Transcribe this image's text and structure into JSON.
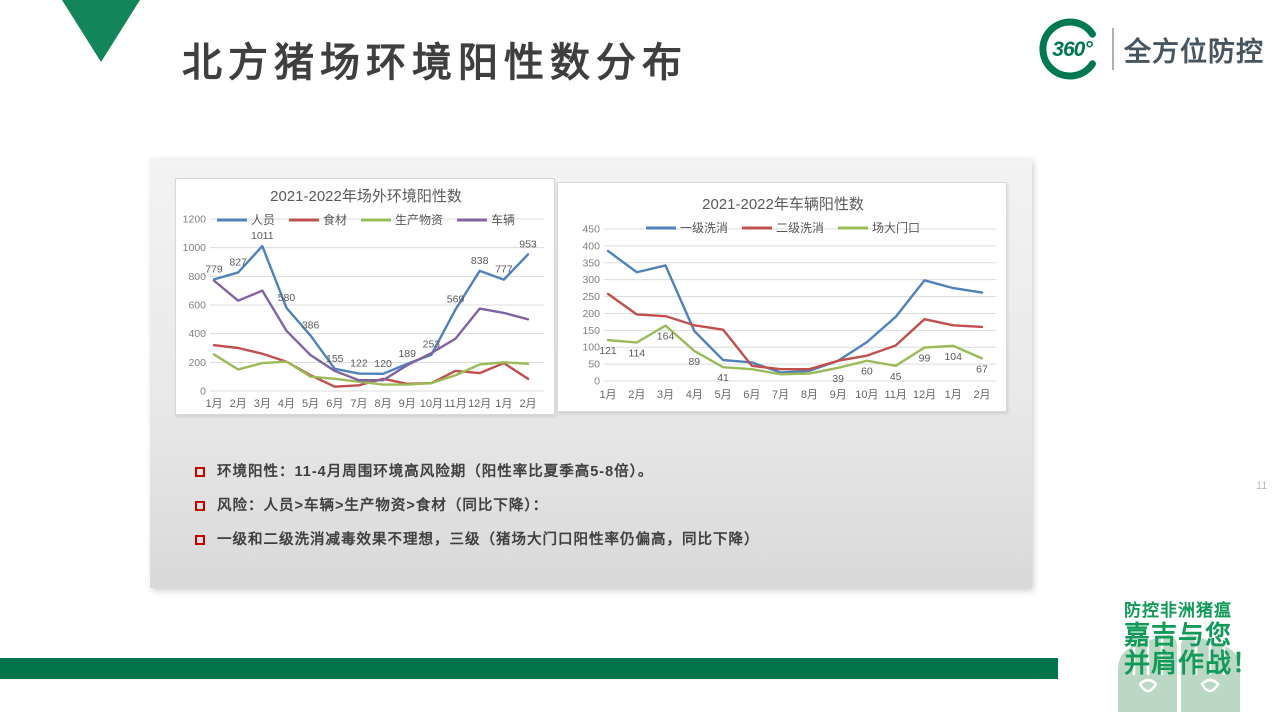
{
  "slide": {
    "title": "北方猪场环境阳性数分布",
    "page_number": "11"
  },
  "logo": {
    "badge": "360°",
    "name": "全方位防控"
  },
  "colors": {
    "brand_green": "#00754C",
    "triangle_green": "#12855A",
    "footer_green": "#129A58",
    "series_blue": "#4F81BD",
    "series_red": "#C0504D",
    "series_green": "#9BBB59",
    "series_purple": "#8064A2"
  },
  "bullets": [
    "环境阳性：11-4月周围环境高风险期（阳性率比夏季高5-8倍）。",
    "风险：人员>车辆>生产物资>食材（同比下降）：",
    "一级和二级洗消减毒效果不理想，三级（猪场大门口阳性率仍偏高，同比下降）"
  ],
  "footer": {
    "tagline": "防控非洲猪瘟",
    "line1": "嘉吉与您",
    "line2": "并肩作战！"
  },
  "chart_data": [
    {
      "type": "line",
      "title": "2021-2022年场外环境阳性数",
      "categories": [
        "1月",
        "2月",
        "3月",
        "4月",
        "5月",
        "6月",
        "7月",
        "8月",
        "9月",
        "10月",
        "11月",
        "12月",
        "1月",
        "2月"
      ],
      "ylim": [
        0,
        1200
      ],
      "ytick_step": 200,
      "grid": true,
      "legend_position": "top",
      "series": [
        {
          "name": "人员",
          "color": "#4F81BD",
          "values": [
            779,
            827,
            1011,
            580,
            386,
            155,
            122,
            120,
            189,
            253,
            569,
            838,
            777,
            953
          ],
          "labels": [
            779,
            827,
            1011,
            580,
            386,
            155,
            122,
            120,
            189,
            253,
            569,
            838,
            777,
            953
          ],
          "label_side": "above"
        },
        {
          "name": "食材",
          "color": "#C0504D",
          "values": [
            320,
            300,
            260,
            205,
            110,
            30,
            40,
            85,
            50,
            55,
            140,
            125,
            195,
            85
          ]
        },
        {
          "name": "生产物资",
          "color": "#9BBB59",
          "values": [
            255,
            150,
            195,
            205,
            100,
            85,
            65,
            45,
            45,
            55,
            110,
            185,
            200,
            190
          ]
        },
        {
          "name": "车辆",
          "color": "#8064A2",
          "values": [
            770,
            630,
            700,
            420,
            250,
            140,
            75,
            75,
            180,
            265,
            365,
            575,
            545,
            500
          ]
        }
      ]
    },
    {
      "type": "line",
      "title": "2021-2022年车辆阳性数",
      "categories": [
        "1月",
        "2月",
        "3月",
        "4月",
        "5月",
        "6月",
        "7月",
        "8月",
        "9月",
        "10月",
        "11月",
        "12月",
        "1月",
        "2月"
      ],
      "ylim": [
        0,
        450
      ],
      "ytick_step": 50,
      "grid": true,
      "legend_position": "top",
      "series": [
        {
          "name": "一级洗消",
          "color": "#4F81BD",
          "values": [
            385,
            322,
            342,
            148,
            62,
            55,
            25,
            30,
            60,
            115,
            190,
            298,
            275,
            262
          ]
        },
        {
          "name": "二级洗消",
          "color": "#C0504D",
          "values": [
            258,
            197,
            192,
            165,
            152,
            45,
            35,
            35,
            60,
            75,
            105,
            183,
            165,
            160
          ]
        },
        {
          "name": "场大门口",
          "color": "#9BBB59",
          "values": [
            121,
            114,
            164,
            89,
            41,
            35,
            20,
            22,
            39,
            60,
            45,
            99,
            104,
            67
          ],
          "labels": [
            121,
            114,
            164,
            89,
            41,
            null,
            null,
            null,
            39,
            60,
            45,
            99,
            104,
            67
          ],
          "label_side": "below"
        }
      ]
    }
  ]
}
